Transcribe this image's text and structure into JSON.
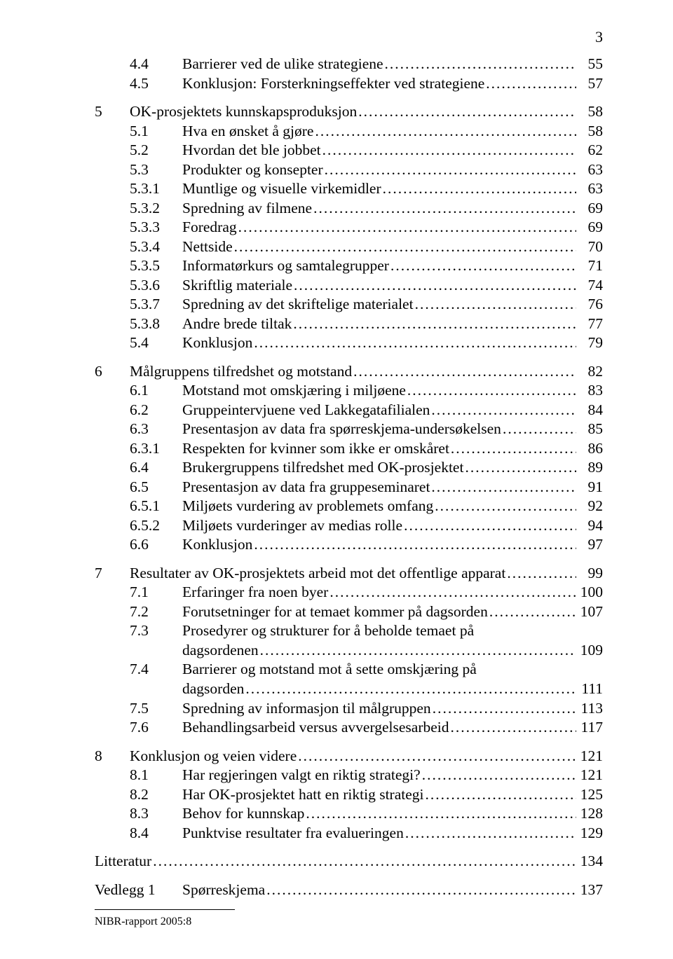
{
  "page_number": "3",
  "footer": "NIBR-rapport 2005:8",
  "toc": [
    {
      "type": "sub",
      "section": "4.4",
      "title": "Barrierer ved de ulike strategiene",
      "page": "55"
    },
    {
      "type": "sub",
      "section": "4.5",
      "title": "Konklusjon: Forsterkningseffekter ved strategiene",
      "page": "57"
    },
    {
      "type": "gap"
    },
    {
      "type": "chapter",
      "chapter": "5",
      "title": "OK-prosjektets kunnskapsproduksjon",
      "page": "58"
    },
    {
      "type": "sub",
      "section": "5.1",
      "title": "Hva en ønsket å gjøre",
      "page": "58"
    },
    {
      "type": "sub",
      "section": "5.2",
      "title": "Hvordan det ble jobbet",
      "page": "62"
    },
    {
      "type": "sub",
      "section": "5.3",
      "title": "Produkter og konsepter",
      "page": "63"
    },
    {
      "type": "sub",
      "section": "5.3.1",
      "title": "Muntlige og visuelle virkemidler",
      "page": "63"
    },
    {
      "type": "sub",
      "section": "5.3.2",
      "title": "Spredning av filmene",
      "page": "69"
    },
    {
      "type": "sub",
      "section": "5.3.3",
      "title": "Foredrag",
      "page": "69"
    },
    {
      "type": "sub",
      "section": "5.3.4",
      "title": "Nettside",
      "page": "70"
    },
    {
      "type": "sub",
      "section": "5.3.5",
      "title": "Informatørkurs og samtalegrupper",
      "page": "71"
    },
    {
      "type": "sub",
      "section": "5.3.6",
      "title": "Skriftlig materiale",
      "page": "74"
    },
    {
      "type": "sub",
      "section": "5.3.7",
      "title": "Spredning av det skriftelige materialet",
      "page": "76"
    },
    {
      "type": "sub",
      "section": "5.3.8",
      "title": "Andre brede tiltak",
      "page": "77"
    },
    {
      "type": "sub",
      "section": "5.4",
      "title": "Konklusjon",
      "page": "79"
    },
    {
      "type": "gap"
    },
    {
      "type": "chapter",
      "chapter": "6",
      "title": "Målgruppens tilfredshet og motstand",
      "page": "82"
    },
    {
      "type": "sub",
      "section": "6.1",
      "title": "Motstand mot omskjæring i miljøene",
      "page": "83"
    },
    {
      "type": "sub",
      "section": "6.2",
      "title": "Gruppeintervjuene ved Lakkegatafilialen",
      "page": "84"
    },
    {
      "type": "sub",
      "section": "6.3",
      "title": "Presentasjon av data fra spørreskjema-undersøkelsen",
      "page": "85"
    },
    {
      "type": "sub",
      "section": "6.3.1",
      "title": "Respekten for kvinner som ikke er omskåret",
      "page": "86"
    },
    {
      "type": "sub",
      "section": "6.4",
      "title": "Brukergruppens tilfredshet med OK-prosjektet",
      "page": "89"
    },
    {
      "type": "sub",
      "section": "6.5",
      "title": "Presentasjon av data fra gruppeseminaret",
      "page": "91"
    },
    {
      "type": "sub",
      "section": "6.5.1",
      "title": "Miljøets vurdering av problemets omfang",
      "page": "92"
    },
    {
      "type": "sub",
      "section": "6.5.2",
      "title": "Miljøets vurderinger av medias rolle",
      "page": "94"
    },
    {
      "type": "sub",
      "section": "6.6",
      "title": "Konklusjon",
      "page": "97"
    },
    {
      "type": "gap"
    },
    {
      "type": "chapter",
      "chapter": "7",
      "title": "Resultater av OK-prosjektets arbeid mot det offentlige apparat",
      "page": "99"
    },
    {
      "type": "sub",
      "section": "7.1",
      "title": "Erfaringer fra noen byer",
      "page": "100"
    },
    {
      "type": "sub",
      "section": "7.2",
      "title": "Forutsetninger for at temaet kommer på dagsorden",
      "page": "107"
    },
    {
      "type": "sub-multi",
      "section": "7.3",
      "title1": "Prosedyrer og strukturer for å beholde temaet på",
      "title2": "dagsordenen",
      "page": "109"
    },
    {
      "type": "sub-multi",
      "section": "7.4",
      "title1": "Barrierer og motstand mot å sette omskjæring på",
      "title2": "dagsorden",
      "page": "111"
    },
    {
      "type": "sub",
      "section": "7.5",
      "title": "Spredning av informasjon til målgruppen",
      "page": "113"
    },
    {
      "type": "sub",
      "section": "7.6",
      "title": "Behandlingsarbeid versus avvergelsesarbeid",
      "page": "117"
    },
    {
      "type": "gap"
    },
    {
      "type": "chapter",
      "chapter": "8",
      "title": "Konklusjon og veien videre",
      "page": "121"
    },
    {
      "type": "sub",
      "section": "8.1",
      "title": "Har regjeringen valgt en riktig strategi?",
      "page": "121"
    },
    {
      "type": "sub",
      "section": "8.2",
      "title": "Har OK-prosjektet hatt en riktig strategi",
      "page": "125"
    },
    {
      "type": "sub",
      "section": "8.3",
      "title": "Behov for kunnskap",
      "page": "128"
    },
    {
      "type": "sub",
      "section": "8.4",
      "title": "Punktvise resultater fra evalueringen",
      "page": "129"
    },
    {
      "type": "gap"
    },
    {
      "type": "plain",
      "title": "Litteratur",
      "page": "134"
    },
    {
      "type": "gap"
    },
    {
      "type": "plain-split",
      "label": "Vedlegg 1",
      "title": "Spørreskjema",
      "page": "137"
    }
  ]
}
